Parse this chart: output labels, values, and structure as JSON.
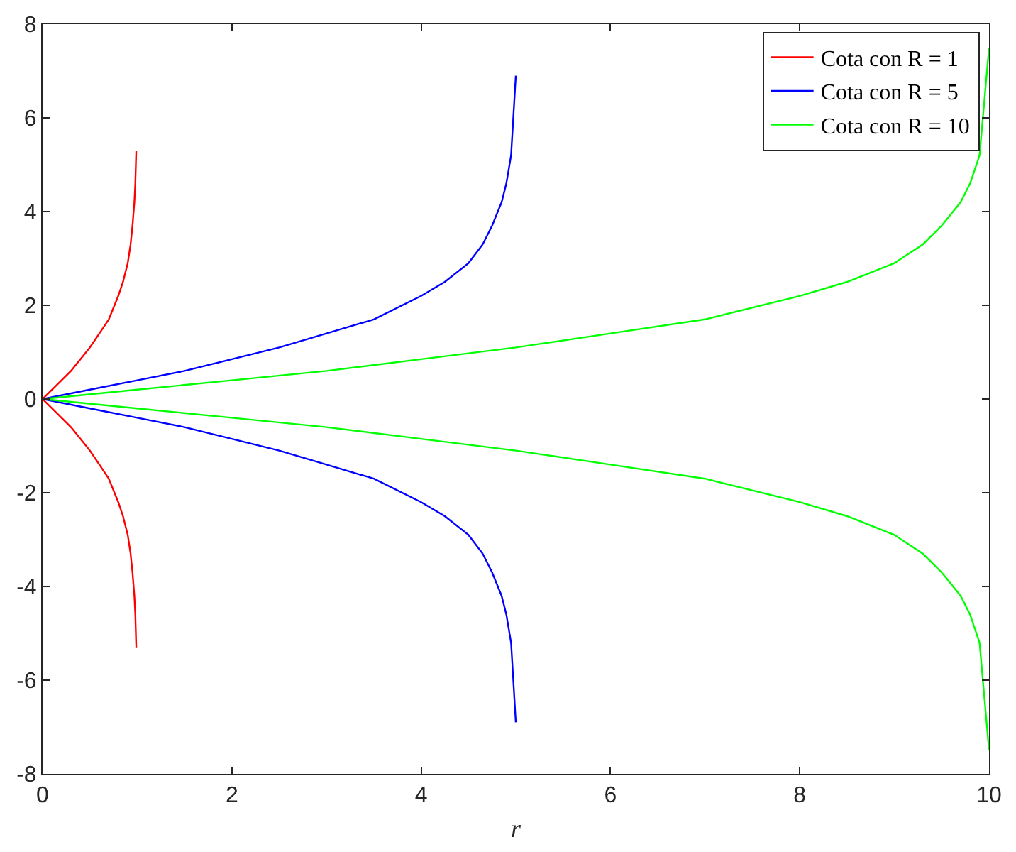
{
  "chart_data": {
    "type": "line",
    "xlabel": "r",
    "xlim": [
      0,
      10
    ],
    "ylim": [
      -8,
      8
    ],
    "xticks": [
      0,
      2,
      4,
      6,
      8,
      10
    ],
    "yticks": [
      -8,
      -6,
      -4,
      -2,
      0,
      2,
      4,
      6,
      8
    ],
    "grid": false,
    "legend": "top right",
    "marker": "none",
    "line_style": "solid",
    "series": [
      {
        "name": "Cota con R = 1",
        "color": "#ff0000",
        "x": [
          0.99,
          0.98,
          0.97,
          0.95,
          0.93,
          0.9,
          0.85,
          0.8,
          0.7,
          0.6,
          0.5,
          0.4,
          0.3,
          0.2,
          0.1,
          0,
          0.1,
          0.2,
          0.3,
          0.4,
          0.5,
          0.6,
          0.7,
          0.8,
          0.85,
          0.9,
          0.93,
          0.95,
          0.97,
          0.98,
          0.99
        ],
        "values": [
          5.3,
          4.6,
          4.2,
          3.7,
          3.3,
          2.9,
          2.5,
          2.2,
          1.7,
          1.4,
          1.1,
          0.85,
          0.6,
          0.4,
          0.2,
          0,
          -0.2,
          -0.4,
          -0.6,
          -0.85,
          -1.1,
          -1.4,
          -1.7,
          -2.2,
          -2.5,
          -2.9,
          -3.3,
          -3.7,
          -4.2,
          -4.6,
          -5.3
        ]
      },
      {
        "name": "Cota con R = 5",
        "color": "#0000ff",
        "x": [
          5,
          4.95,
          4.9,
          4.85,
          4.75,
          4.65,
          4.5,
          4.25,
          4,
          3.5,
          3,
          2.5,
          2,
          1.5,
          1,
          0.5,
          0,
          0.5,
          1,
          1.5,
          2,
          2.5,
          3,
          3.5,
          4,
          4.25,
          4.5,
          4.65,
          4.75,
          4.85,
          4.9,
          4.95,
          5
        ],
        "values": [
          6.9,
          5.2,
          4.6,
          4.2,
          3.7,
          3.3,
          2.9,
          2.5,
          2.2,
          1.7,
          1.4,
          1.1,
          0.85,
          0.6,
          0.4,
          0.2,
          0,
          -0.2,
          -0.4,
          -0.6,
          -0.85,
          -1.1,
          -1.4,
          -1.7,
          -2.2,
          -2.5,
          -2.9,
          -3.3,
          -3.7,
          -4.2,
          -4.6,
          -5.2,
          -6.9
        ]
      },
      {
        "name": "Cota con R = 10",
        "color": "#00ff00",
        "x": [
          10,
          9.9,
          9.8,
          9.7,
          9.5,
          9.3,
          9,
          8.5,
          8,
          7,
          6,
          5,
          4,
          3,
          2,
          1,
          0,
          1,
          2,
          3,
          4,
          5,
          6,
          7,
          8,
          8.5,
          9,
          9.3,
          9.5,
          9.7,
          9.8,
          9.9,
          10
        ],
        "values": [
          7.5,
          5.2,
          4.6,
          4.2,
          3.7,
          3.3,
          2.9,
          2.5,
          2.2,
          1.7,
          1.4,
          1.1,
          0.85,
          0.6,
          0.4,
          0.2,
          0,
          -0.2,
          -0.4,
          -0.6,
          -0.85,
          -1.1,
          -1.4,
          -1.7,
          -2.2,
          -2.5,
          -2.9,
          -3.3,
          -3.7,
          -4.2,
          -4.6,
          -5.2,
          -7.5
        ]
      }
    ]
  }
}
